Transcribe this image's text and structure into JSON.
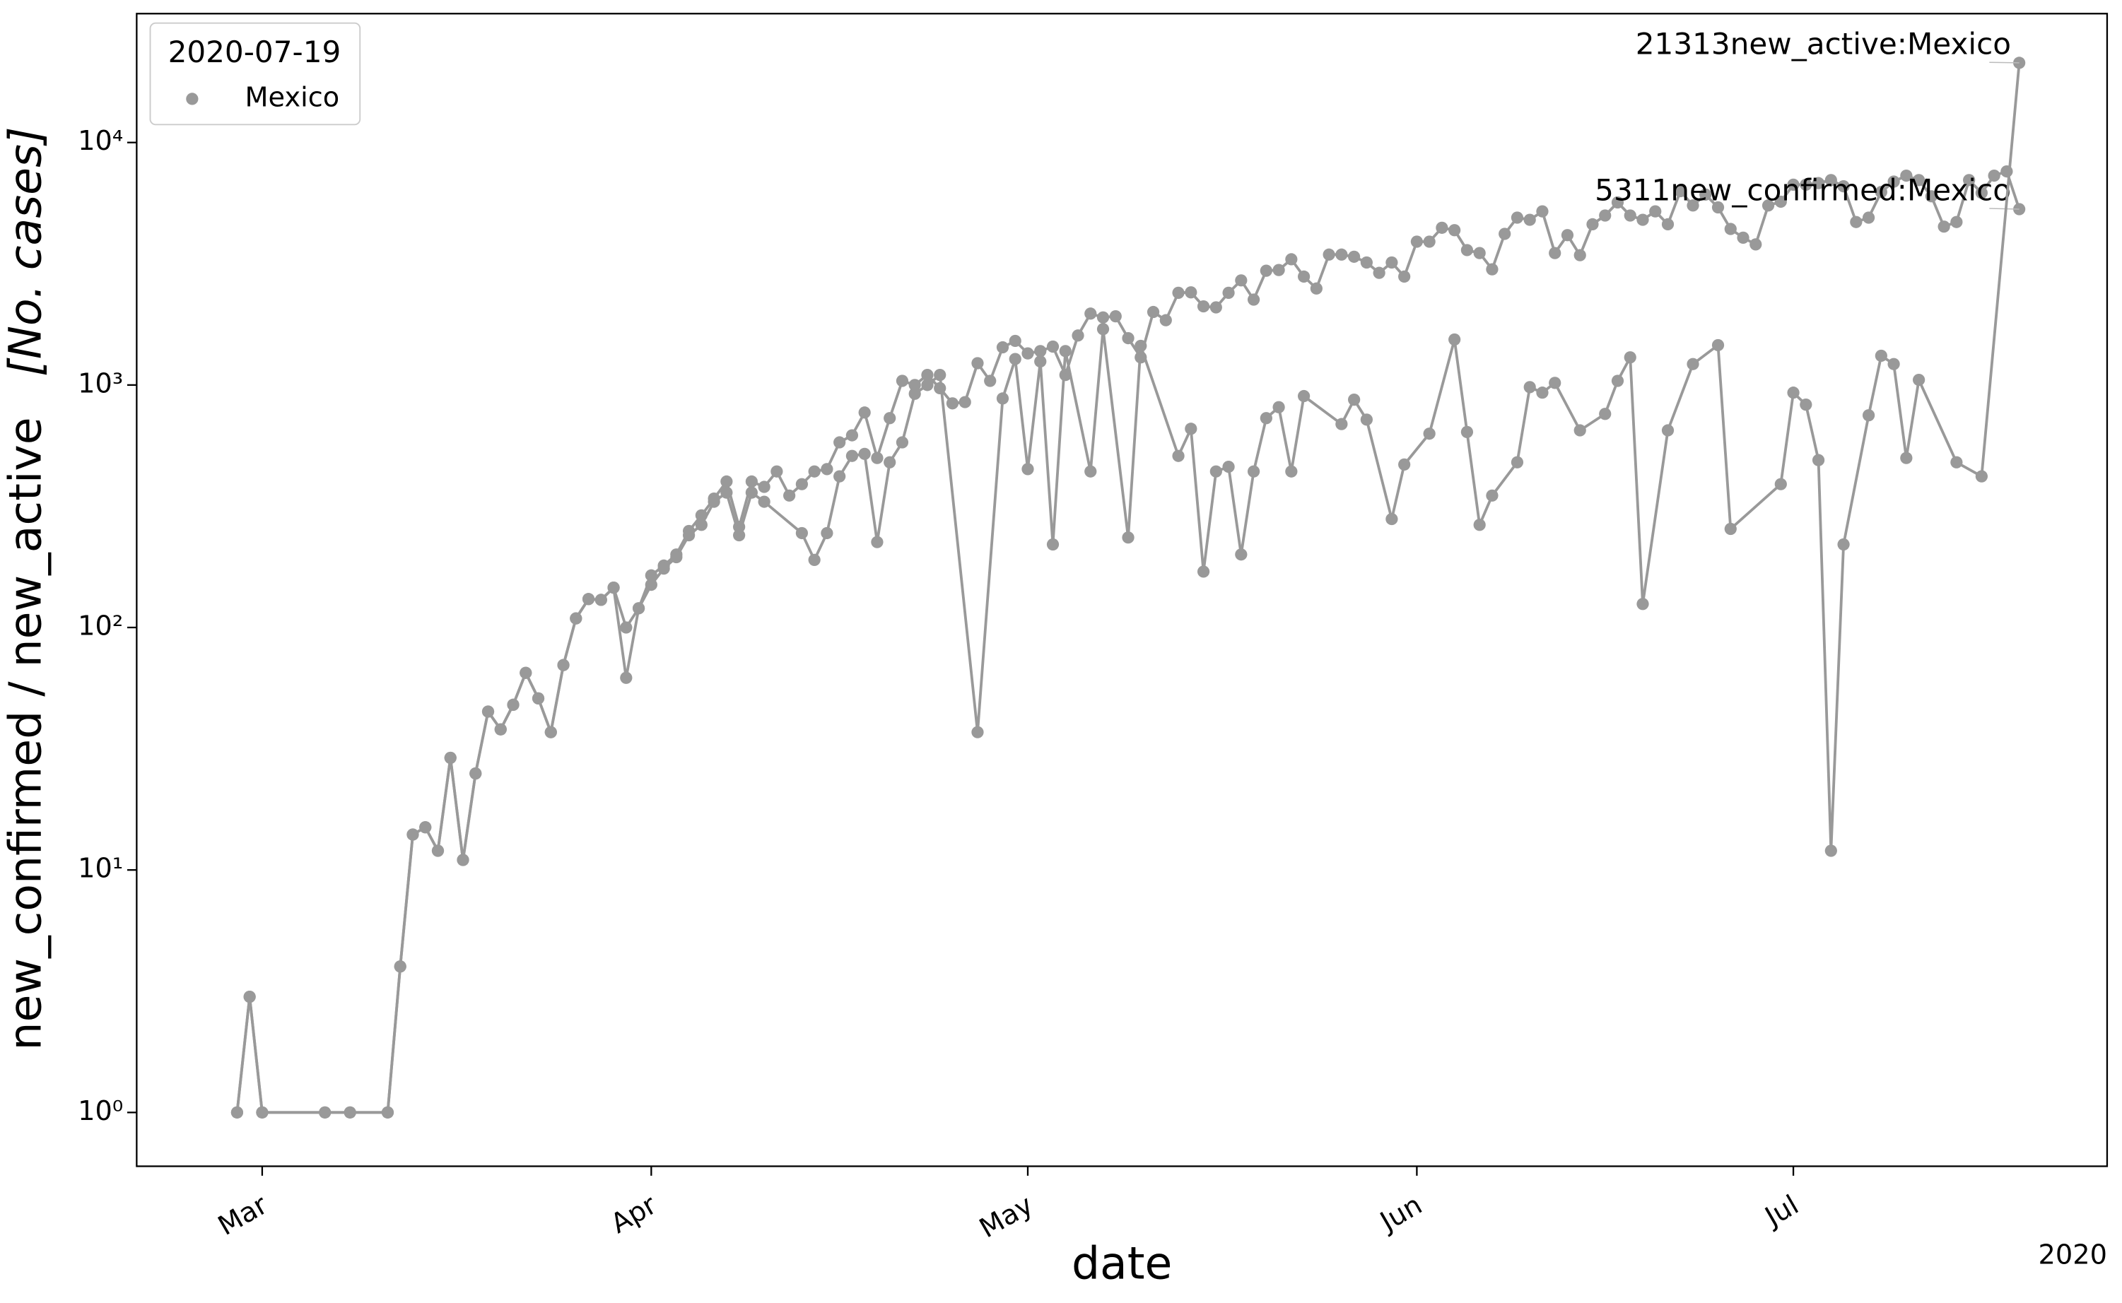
{
  "chart_data": {
    "type": "line",
    "ylabel": "new_confirmed / new_active",
    "ylabel_unit": "[No. cases]",
    "xlabel": "date",
    "x_year": "2020",
    "legend_title": "2020-07-19",
    "legend_loc": "upper left",
    "log_y": true,
    "ylim": [
      0.6,
      34000
    ],
    "yticks": [
      {
        "value": 1,
        "label": "10⁰"
      },
      {
        "value": 10,
        "label": "10¹"
      },
      {
        "value": 100,
        "label": "10²"
      },
      {
        "value": 1000,
        "label": "10³"
      },
      {
        "value": 10000,
        "label": "10⁴"
      }
    ],
    "xlim": [
      "2020-02-20",
      "2020-07-26"
    ],
    "xticks": [
      {
        "value": "2020-03-01",
        "label": "Mar"
      },
      {
        "value": "2020-04-01",
        "label": "Apr"
      },
      {
        "value": "2020-05-01",
        "label": "May"
      },
      {
        "value": "2020-06-01",
        "label": "Jun"
      },
      {
        "value": "2020-07-01",
        "label": "Jul"
      }
    ],
    "series": [
      {
        "name": "Mexico",
        "color": "#999999",
        "annotation": "5311new_confirmed:Mexico",
        "x": [
          "2020-02-28",
          "2020-02-29",
          "2020-03-01",
          "2020-03-06",
          "2020-03-08",
          "2020-03-11",
          "2020-03-12",
          "2020-03-13",
          "2020-03-14",
          "2020-03-15",
          "2020-03-16",
          "2020-03-17",
          "2020-03-18",
          "2020-03-19",
          "2020-03-20",
          "2020-03-21",
          "2020-03-22",
          "2020-03-23",
          "2020-03-24",
          "2020-03-25",
          "2020-03-26",
          "2020-03-27",
          "2020-03-28",
          "2020-03-29",
          "2020-03-30",
          "2020-03-31",
          "2020-04-01",
          "2020-04-02",
          "2020-04-03",
          "2020-04-04",
          "2020-04-05",
          "2020-04-06",
          "2020-04-07",
          "2020-04-08",
          "2020-04-09",
          "2020-04-10",
          "2020-04-11",
          "2020-04-12",
          "2020-04-13",
          "2020-04-14",
          "2020-04-15",
          "2020-04-16",
          "2020-04-17",
          "2020-04-18",
          "2020-04-19",
          "2020-04-20",
          "2020-04-21",
          "2020-04-22",
          "2020-04-23",
          "2020-04-24",
          "2020-04-25",
          "2020-04-26",
          "2020-04-27",
          "2020-04-28",
          "2020-04-29",
          "2020-04-30",
          "2020-05-01",
          "2020-05-02",
          "2020-05-03",
          "2020-05-04",
          "2020-05-05",
          "2020-05-06",
          "2020-05-07",
          "2020-05-08",
          "2020-05-09",
          "2020-05-10",
          "2020-05-11",
          "2020-05-12",
          "2020-05-13",
          "2020-05-14",
          "2020-05-15",
          "2020-05-16",
          "2020-05-17",
          "2020-05-18",
          "2020-05-19",
          "2020-05-20",
          "2020-05-21",
          "2020-05-22",
          "2020-05-23",
          "2020-05-24",
          "2020-05-25",
          "2020-05-26",
          "2020-05-27",
          "2020-05-28",
          "2020-05-29",
          "2020-05-30",
          "2020-05-31",
          "2020-06-01",
          "2020-06-02",
          "2020-06-03",
          "2020-06-04",
          "2020-06-05",
          "2020-06-06",
          "2020-06-07",
          "2020-06-08",
          "2020-06-09",
          "2020-06-10",
          "2020-06-11",
          "2020-06-12",
          "2020-06-13",
          "2020-06-14",
          "2020-06-15",
          "2020-06-16",
          "2020-06-17",
          "2020-06-18",
          "2020-06-19",
          "2020-06-20",
          "2020-06-21",
          "2020-06-22",
          "2020-06-23",
          "2020-06-24",
          "2020-06-25",
          "2020-06-26",
          "2020-06-27",
          "2020-06-28",
          "2020-06-29",
          "2020-06-30",
          "2020-07-01",
          "2020-07-02",
          "2020-07-03",
          "2020-07-04",
          "2020-07-05",
          "2020-07-06",
          "2020-07-07",
          "2020-07-08",
          "2020-07-09",
          "2020-07-10",
          "2020-07-11",
          "2020-07-12",
          "2020-07-13",
          "2020-07-14",
          "2020-07-15",
          "2020-07-16",
          "2020-07-17",
          "2020-07-18",
          "2020-07-19"
        ],
        "values": [
          1,
          3,
          1,
          1,
          1,
          1,
          4,
          14,
          15,
          12,
          29,
          11,
          25,
          45,
          38,
          48,
          65,
          51,
          37,
          70,
          109,
          131,
          130,
          146,
          100,
          120,
          164,
          180,
          200,
          250,
          290,
          340,
          400,
          260,
          400,
          380,
          440,
          350,
          390,
          440,
          450,
          580,
          620,
          770,
          500,
          730,
          1040,
          1000,
          1100,
          970,
          840,
          850,
          1230,
          1040,
          1430,
          1520,
          1350,
          1380,
          1440,
          1100,
          1600,
          1970,
          1900,
          1920,
          1560,
          1300,
          2000,
          1850,
          2400,
          2410,
          2110,
          2090,
          2400,
          2700,
          2250,
          2960,
          2980,
          3300,
          2800,
          2500,
          3450,
          3450,
          3380,
          3200,
          2900,
          3200,
          2800,
          3900,
          3900,
          4450,
          4350,
          3600,
          3500,
          3000,
          4200,
          4900,
          4800,
          5200,
          3500,
          4150,
          3430,
          4600,
          5000,
          5660,
          5000,
          4800,
          5200,
          4600,
          6300,
          5500,
          6100,
          5400,
          4400,
          4050,
          3800,
          5500,
          5700,
          6700,
          6700,
          6800,
          7000,
          6600,
          4700,
          4900,
          6250,
          6900,
          7300,
          7000,
          6000,
          4500,
          4700,
          7000,
          6200,
          7300,
          7600,
          5311
        ]
      },
      {
        "name": "Mexico",
        "color": "#999999",
        "annotation": "21313new_active:Mexico",
        "x": [
          "2020-02-28",
          "2020-02-29",
          "2020-03-01",
          "2020-03-06",
          "2020-03-08",
          "2020-03-11",
          "2020-03-12",
          "2020-03-13",
          "2020-03-14",
          "2020-03-15",
          "2020-03-16",
          "2020-03-17",
          "2020-03-18",
          "2020-03-19",
          "2020-03-20",
          "2020-03-21",
          "2020-03-22",
          "2020-03-23",
          "2020-03-24",
          "2020-03-25",
          "2020-03-26",
          "2020-03-27",
          "2020-03-28",
          "2020-03-29",
          "2020-03-30",
          "2020-03-31",
          "2020-04-01",
          "2020-04-02",
          "2020-04-03",
          "2020-04-04",
          "2020-04-05",
          "2020-04-06",
          "2020-04-07",
          "2020-04-08",
          "2020-04-09",
          "2020-04-10",
          "2020-04-13",
          "2020-04-14",
          "2020-04-15",
          "2020-04-16",
          "2020-04-17",
          "2020-04-18",
          "2020-04-19",
          "2020-04-20",
          "2020-04-21",
          "2020-04-22",
          "2020-04-23",
          "2020-04-24",
          "2020-04-27",
          "2020-04-29",
          "2020-04-30",
          "2020-05-01",
          "2020-05-02",
          "2020-05-03",
          "2020-05-04",
          "2020-05-06",
          "2020-05-07",
          "2020-05-09",
          "2020-05-10",
          "2020-05-13",
          "2020-05-14",
          "2020-05-15",
          "2020-05-16",
          "2020-05-17",
          "2020-05-18",
          "2020-05-19",
          "2020-05-20",
          "2020-05-21",
          "2020-05-22",
          "2020-05-23",
          "2020-05-26",
          "2020-05-27",
          "2020-05-28",
          "2020-05-30",
          "2020-05-31",
          "2020-06-02",
          "2020-06-04",
          "2020-06-05",
          "2020-06-06",
          "2020-06-07",
          "2020-06-09",
          "2020-06-10",
          "2020-06-11",
          "2020-06-12",
          "2020-06-14",
          "2020-06-16",
          "2020-06-17",
          "2020-06-18",
          "2020-06-19",
          "2020-06-21",
          "2020-06-23",
          "2020-06-25",
          "2020-06-26",
          "2020-06-30",
          "2020-07-01",
          "2020-07-02",
          "2020-07-03",
          "2020-07-04",
          "2020-07-05",
          "2020-07-07",
          "2020-07-08",
          "2020-07-09",
          "2020-07-10",
          "2020-07-11",
          "2020-07-14",
          "2020-07-16",
          "2020-07-19"
        ],
        "values": [
          1,
          3,
          1,
          1,
          1,
          1,
          4,
          14,
          15,
          12,
          29,
          11,
          25,
          45,
          38,
          48,
          65,
          51,
          37,
          70,
          109,
          131,
          130,
          146,
          62,
          120,
          150,
          175,
          195,
          240,
          265,
          330,
          360,
          240,
          360,
          330,
          245,
          190,
          245,
          420,
          510,
          520,
          225,
          480,
          580,
          920,
          1000,
          1100,
          37,
          880,
          1280,
          450,
          1250,
          220,
          1380,
          440,
          1700,
          235,
          1450,
          510,
          660,
          170,
          440,
          460,
          200,
          440,
          730,
          810,
          440,
          900,
          690,
          870,
          720,
          280,
          470,
          630,
          1540,
          640,
          265,
          350,
          480,
          980,
          930,
          1020,
          650,
          760,
          1040,
          1300,
          125,
          650,
          1220,
          1460,
          255,
          390,
          930,
          830,
          490,
          12,
          220,
          750,
          1320,
          1220,
          500,
          1050,
          480,
          420,
          21313
        ]
      }
    ]
  }
}
